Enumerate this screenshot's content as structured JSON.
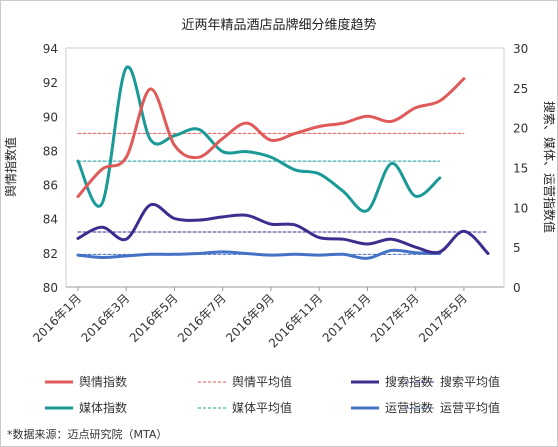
{
  "chart_data": {
    "type": "line",
    "title": "近两年精品酒店品牌细分维度趋势",
    "ylabel_left": "舆情指数值",
    "ylabel_right": "搜索、媒体、运营指数值",
    "ylim_left": [
      80,
      94
    ],
    "ylim_right": [
      0,
      30
    ],
    "yticks_left": [
      "80",
      "82",
      "84",
      "86",
      "88",
      "90",
      "92",
      "94"
    ],
    "yticks_right": [
      "0",
      "5",
      "10",
      "15",
      "20",
      "25",
      "30"
    ],
    "x_tick_labels": [
      "2016年1月",
      "2016年3月",
      "2016年5月",
      "2016年7月",
      "2016年9月",
      "2016年11月",
      "2017年1月",
      "2017年3月",
      "2017年5月"
    ],
    "x": [
      "2016-01",
      "2016-02",
      "2016-03",
      "2016-04",
      "2016-05",
      "2016-06",
      "2016-07",
      "2016-08",
      "2016-09",
      "2016-10",
      "2016-11",
      "2016-12",
      "2017-01",
      "2017-02",
      "2017-03",
      "2017-04",
      "2017-05",
      "2017-06"
    ],
    "grid": false,
    "legend_position": "bottom",
    "series": [
      {
        "name": "舆情指数",
        "axis": "left",
        "style": "solid",
        "color": "#e05a5a",
        "values": [
          85.3,
          86.9,
          87.6,
          91.6,
          88.3,
          87.6,
          88.7,
          89.6,
          88.6,
          89.0,
          89.4,
          89.6,
          90.0,
          89.7,
          90.5,
          90.9,
          92.2,
          null
        ]
      },
      {
        "name": "舆情平均值",
        "axis": "left",
        "style": "dashed",
        "color": "#e05a5a",
        "values": [
          89.0,
          89.0,
          89.0,
          89.0,
          89.0,
          89.0,
          89.0,
          89.0,
          89.0,
          89.0,
          89.0,
          89.0,
          89.0,
          89.0,
          89.0,
          89.0,
          89.0,
          null
        ]
      },
      {
        "name": "搜索指数",
        "axis": "right",
        "style": "solid",
        "color": "#3c2d8f",
        "values": [
          6.1,
          7.5,
          6.0,
          10.3,
          8.6,
          8.4,
          8.8,
          9.0,
          7.9,
          7.8,
          6.2,
          6.0,
          5.4,
          6.0,
          5.0,
          4.4,
          7.0,
          4.2
        ]
      },
      {
        "name": "搜索平均值",
        "axis": "right",
        "style": "dashed",
        "color": "#3c2d8f",
        "values": [
          6.9,
          6.9,
          6.9,
          6.9,
          6.9,
          6.9,
          6.9,
          6.9,
          6.9,
          6.9,
          6.9,
          6.9,
          6.9,
          6.9,
          6.9,
          6.9,
          6.9,
          6.9
        ]
      },
      {
        "name": "媒体指数",
        "axis": "right",
        "style": "solid",
        "color": "#1a9a96",
        "values": [
          15.8,
          10.5,
          27.5,
          18.5,
          19.0,
          19.8,
          17.0,
          17.0,
          16.3,
          14.7,
          14.2,
          12.0,
          9.6,
          15.5,
          11.4,
          13.7,
          null,
          null
        ]
      },
      {
        "name": "媒体平均值",
        "axis": "right",
        "style": "dashed",
        "color": "#1a9a96",
        "values": [
          15.8,
          15.8,
          15.8,
          15.8,
          15.8,
          15.8,
          15.8,
          15.8,
          15.8,
          15.8,
          15.8,
          15.8,
          15.8,
          15.8,
          15.8,
          15.8,
          null,
          null
        ]
      },
      {
        "name": "运营指数",
        "axis": "right",
        "style": "solid",
        "color": "#4472c4",
        "values": [
          4.0,
          3.7,
          3.9,
          4.1,
          4.1,
          4.2,
          4.4,
          4.2,
          4.0,
          4.1,
          4.0,
          4.1,
          3.6,
          4.6,
          4.3,
          4.2,
          null,
          null
        ]
      },
      {
        "name": "运营平均值",
        "axis": "right",
        "style": "dashed",
        "color": "#4472c4",
        "values": [
          4.1,
          4.1,
          4.1,
          4.1,
          4.1,
          4.1,
          4.1,
          4.1,
          4.1,
          4.1,
          4.1,
          4.1,
          4.1,
          4.1,
          4.1,
          4.1,
          null,
          null
        ]
      }
    ],
    "source": "*数据来源：迈点研究院（MTA）"
  }
}
